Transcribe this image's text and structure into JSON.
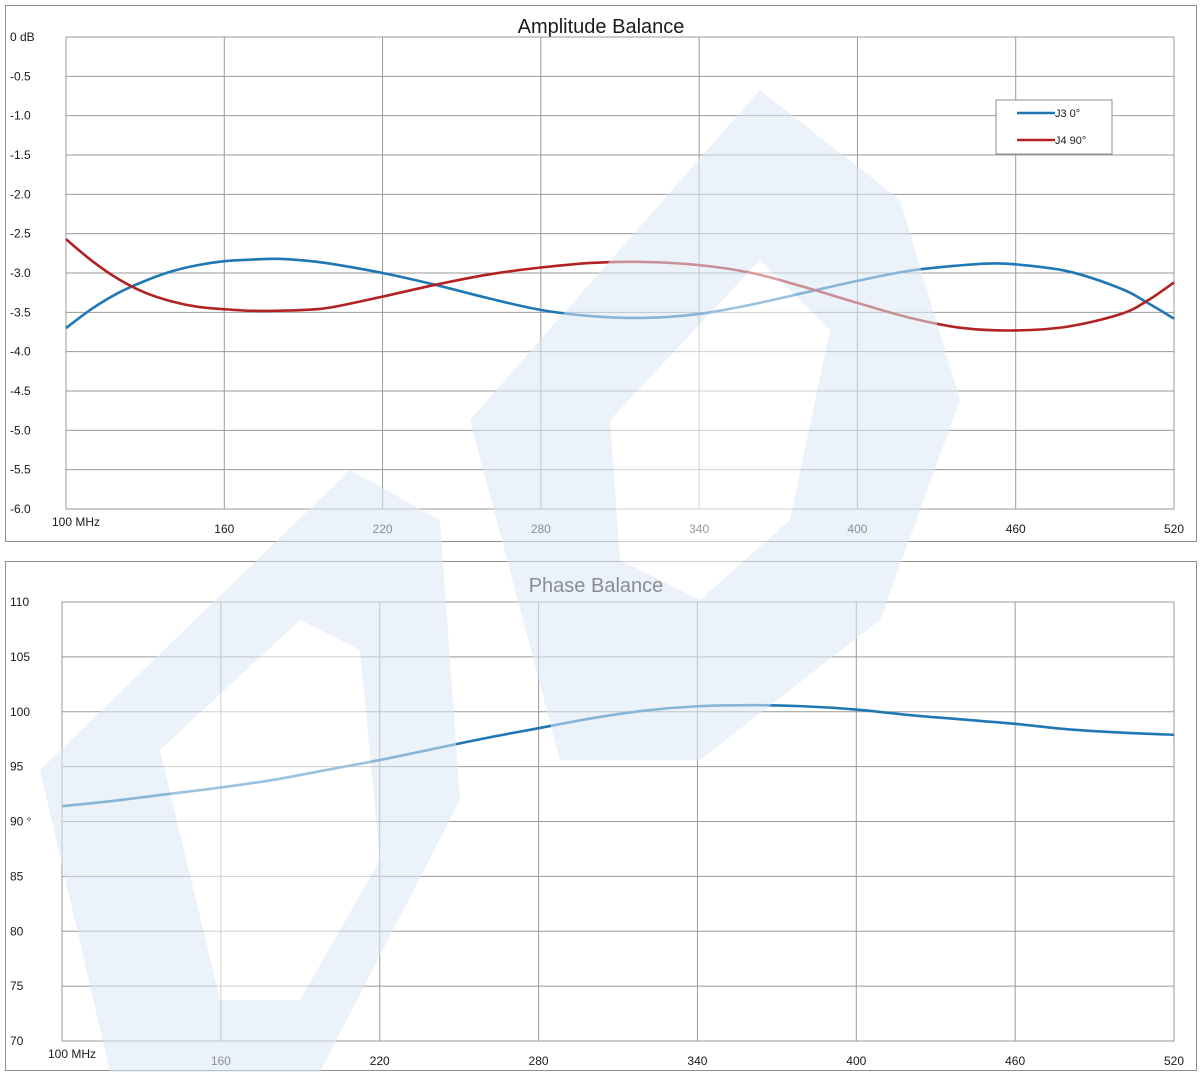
{
  "colors": {
    "j3": "#1f77b4",
    "j4": "#b22222",
    "grid": "#9a9a9a",
    "watermark": "#dde9f5"
  },
  "chart_data": [
    {
      "type": "line",
      "title": "Amplitude Balance",
      "x": [
        100,
        520
      ],
      "xlim": [
        100,
        520
      ],
      "ylim": [
        -6.0,
        0
      ],
      "x_ticks": [
        100,
        160,
        220,
        280,
        340,
        400,
        460,
        520
      ],
      "x_tick_labels": [
        "100 MHz",
        "160",
        "220",
        "280",
        "340",
        "400",
        "460",
        "520"
      ],
      "y_ticks": [
        0,
        -0.5,
        -1.0,
        -1.5,
        -2.0,
        -2.5,
        -3.0,
        -3.5,
        -4.0,
        -4.5,
        -5.0,
        -5.5,
        -6.0
      ],
      "y_tick_labels": [
        "0 dB",
        "-0.5",
        "-1.0",
        "-1.5",
        "-2.0",
        "-2.5",
        "-3.0",
        "-3.5",
        "-4.0",
        "-4.5",
        "-5.0",
        "-5.5",
        "-6.0"
      ],
      "grid": true,
      "legend": "top-right",
      "series": [
        {
          "name": "J3 0°",
          "color": "#1f77b4",
          "x": [
            100,
            110,
            120,
            130,
            140,
            150,
            160,
            170,
            180,
            190,
            200,
            220,
            240,
            260,
            280,
            300,
            320,
            340,
            360,
            380,
            400,
            420,
            440,
            450,
            460,
            480,
            500,
            510,
            520
          ],
          "values": [
            -3.7,
            -3.45,
            -3.25,
            -3.1,
            -2.98,
            -2.9,
            -2.85,
            -2.83,
            -2.82,
            -2.84,
            -2.88,
            -3.0,
            -3.15,
            -3.32,
            -3.47,
            -3.55,
            -3.57,
            -3.52,
            -3.4,
            -3.25,
            -3.1,
            -2.97,
            -2.9,
            -2.88,
            -2.89,
            -2.98,
            -3.2,
            -3.38,
            -3.58
          ]
        },
        {
          "name": "J4 90°",
          "color": "#b22222",
          "x": [
            100,
            110,
            120,
            130,
            140,
            150,
            160,
            170,
            180,
            190,
            200,
            220,
            240,
            260,
            280,
            300,
            320,
            340,
            360,
            380,
            400,
            420,
            440,
            460,
            480,
            500,
            510,
            520
          ],
          "values": [
            -2.57,
            -2.85,
            -3.08,
            -3.25,
            -3.36,
            -3.43,
            -3.46,
            -3.48,
            -3.48,
            -3.47,
            -3.44,
            -3.3,
            -3.15,
            -3.02,
            -2.93,
            -2.87,
            -2.86,
            -2.9,
            -3.0,
            -3.18,
            -3.38,
            -3.57,
            -3.7,
            -3.73,
            -3.68,
            -3.52,
            -3.35,
            -3.12
          ]
        }
      ]
    },
    {
      "type": "line",
      "title": "Phase Balance",
      "x": [
        100,
        520
      ],
      "xlim": [
        100,
        520
      ],
      "ylim": [
        70,
        110
      ],
      "x_ticks": [
        100,
        160,
        220,
        280,
        340,
        400,
        460,
        520
      ],
      "x_tick_labels": [
        "100 MHz",
        "160",
        "220",
        "280",
        "340",
        "400",
        "460",
        "520"
      ],
      "y_ticks": [
        110,
        105,
        100,
        95,
        90,
        85,
        80,
        75,
        70
      ],
      "y_tick_labels": [
        "110",
        "105",
        "100",
        "95",
        "90 °",
        "85",
        "80",
        "75",
        "70"
      ],
      "grid": true,
      "series": [
        {
          "color": "#1f77b4",
          "x": [
            100,
            120,
            140,
            160,
            180,
            200,
            220,
            240,
            260,
            280,
            300,
            320,
            340,
            360,
            380,
            400,
            420,
            440,
            460,
            480,
            500,
            520
          ],
          "values": [
            91.4,
            91.9,
            92.5,
            93.1,
            93.8,
            94.7,
            95.6,
            96.6,
            97.6,
            98.5,
            99.4,
            100.1,
            100.5,
            100.6,
            100.5,
            100.2,
            99.7,
            99.3,
            98.9,
            98.4,
            98.1,
            97.9
          ]
        }
      ]
    }
  ]
}
